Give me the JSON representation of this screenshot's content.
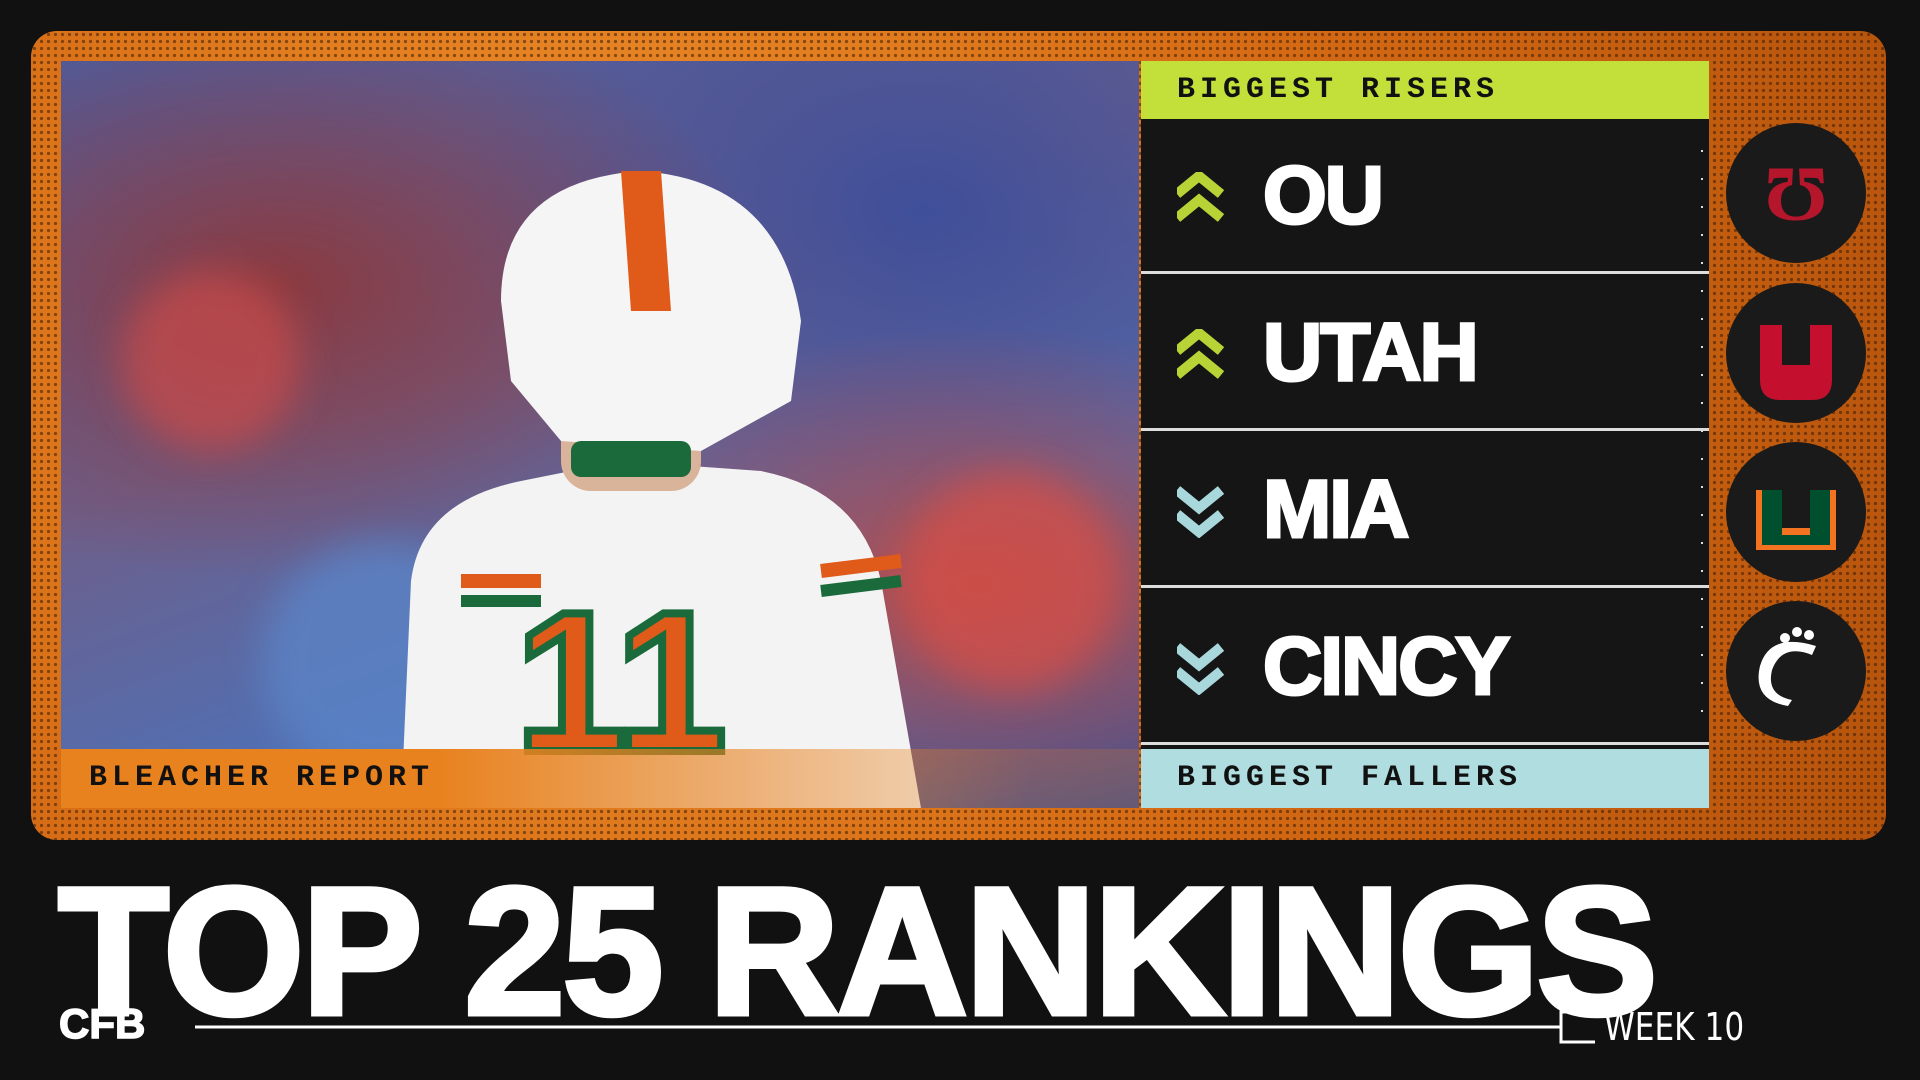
{
  "brand": "BLEACHER REPORT",
  "risers": {
    "heading": "BIGGEST RISERS",
    "teams": [
      "OU",
      "UTAH"
    ]
  },
  "fallers": {
    "heading": "BIGGEST FALLERS",
    "teams": [
      "MIA",
      "CINCY"
    ]
  },
  "title": "TOP 25 RANKINGS",
  "sport": "CFB",
  "week": "WEEK 10"
}
